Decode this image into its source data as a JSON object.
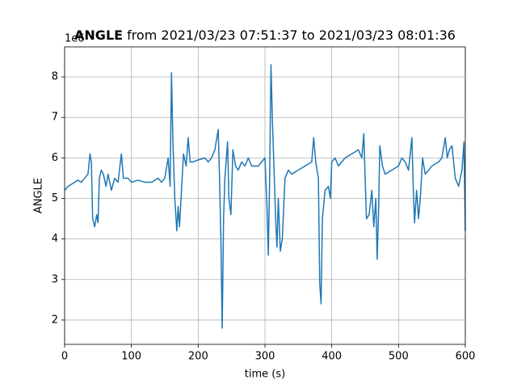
{
  "chart_data": {
    "type": "line",
    "title_bold": "ANGLE",
    "title_rest": "from 2021/03/23 07:51:37 to 2021/03/23 08:01:36",
    "offset_label": "1e6",
    "xlabel": "time (s)",
    "ylabel": "ANGLE",
    "xlim": [
      0,
      600
    ],
    "xticks": [
      0,
      100,
      200,
      300,
      400,
      500,
      600
    ],
    "ylim": [
      1.4,
      8.74
    ],
    "yticks": [
      2,
      3,
      4,
      5,
      6,
      7,
      8
    ],
    "grid": true,
    "series": [
      {
        "color": "#1f77b4",
        "x": [
          0,
          5,
          10,
          15,
          20,
          25,
          30,
          35,
          38,
          40,
          42,
          45,
          48,
          50,
          52,
          55,
          58,
          62,
          65,
          70,
          75,
          80,
          85,
          88,
          95,
          100,
          110,
          120,
          130,
          140,
          145,
          150,
          155,
          158,
          160,
          162,
          165,
          168,
          170,
          172,
          175,
          178,
          182,
          185,
          188,
          192,
          200,
          210,
          215,
          220,
          225,
          230,
          232,
          234,
          236,
          238,
          240,
          244,
          246,
          249,
          252,
          256,
          260,
          265,
          270,
          275,
          280,
          290,
          295,
          300,
          303,
          305,
          307,
          309,
          311,
          313,
          316,
          318,
          320,
          323,
          326,
          330,
          335,
          340,
          350,
          360,
          370,
          373,
          376,
          380,
          382,
          384,
          386,
          390,
          395,
          398,
          400,
          405,
          410,
          420,
          430,
          440,
          445,
          448,
          450,
          452,
          456,
          460,
          463,
          466,
          468,
          470,
          472,
          476,
          480,
          490,
          500,
          505,
          510,
          515,
          520,
          522,
          524,
          527,
          530,
          533,
          536,
          540,
          550,
          560,
          565,
          570,
          573,
          576,
          580,
          585,
          590,
          595,
          598,
          600
        ],
        "values": [
          5.2,
          5.3,
          5.35,
          5.4,
          5.45,
          5.4,
          5.5,
          5.6,
          6.1,
          5.9,
          4.5,
          4.3,
          4.6,
          4.4,
          5.5,
          5.7,
          5.6,
          5.3,
          5.6,
          5.2,
          5.5,
          5.4,
          6.1,
          5.5,
          5.5,
          5.4,
          5.45,
          5.4,
          5.4,
          5.5,
          5.4,
          5.5,
          6.0,
          5.3,
          8.1,
          6.5,
          5.0,
          4.2,
          4.8,
          4.3,
          5.2,
          6.1,
          5.8,
          6.5,
          5.9,
          5.9,
          5.95,
          6.0,
          5.9,
          6.0,
          6.2,
          6.7,
          5.5,
          4.0,
          1.8,
          4.5,
          5.5,
          6.4,
          5.0,
          4.6,
          6.2,
          5.8,
          5.7,
          5.9,
          5.8,
          6.0,
          5.8,
          5.8,
          5.9,
          6.0,
          4.8,
          3.6,
          5.5,
          8.3,
          7.0,
          6.0,
          4.5,
          3.8,
          5.0,
          3.7,
          4.0,
          5.5,
          5.7,
          5.6,
          5.7,
          5.8,
          5.9,
          6.5,
          5.9,
          5.5,
          2.9,
          2.4,
          4.5,
          5.2,
          5.3,
          5.0,
          5.9,
          6.0,
          5.8,
          6.0,
          6.1,
          6.2,
          6.0,
          6.6,
          5.5,
          4.5,
          4.6,
          5.2,
          4.3,
          5.0,
          3.5,
          4.6,
          6.3,
          5.8,
          5.6,
          5.7,
          5.8,
          6.0,
          5.9,
          5.7,
          6.5,
          5.3,
          4.4,
          5.2,
          4.5,
          5.1,
          6.0,
          5.6,
          5.8,
          5.9,
          6.0,
          6.5,
          6.0,
          6.2,
          6.3,
          5.5,
          5.3,
          5.7,
          6.4,
          4.2
        ]
      }
    ]
  }
}
